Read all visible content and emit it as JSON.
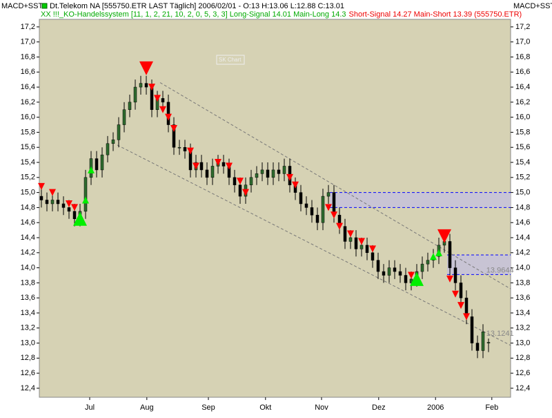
{
  "chart_data": {
    "type": "candlestick",
    "header": {
      "indicator": "MACD+SST",
      "symbol_line": "Dt.Telekom NA [555750.ETR LAST Täglich] 2006/02/01 - O:13 H:13.06 L:12.88 C:13.01",
      "system_line": "XX !!!_KO-Handelssystem [11, 1, 2, 21, 10, 2, 0, 5, 3, 3] Long-Signal 14.01 Main-Long 14.3",
      "short_line": "Short-Signal 14.27 Main-Short 13.39 (555750.ETR)",
      "watermark": "SK Chart"
    },
    "open": [
      14.95,
      14.9,
      14.85,
      14.9,
      14.85,
      14.8,
      14.75,
      14.65,
      14.75,
      15.2,
      15.45,
      15.3,
      15.5,
      15.65,
      15.7,
      15.9,
      16.1,
      16.2,
      16.4,
      16.45,
      16.4,
      16.1,
      16.25,
      16.2,
      15.9,
      15.6,
      15.6,
      15.55,
      15.3,
      15.4,
      15.3,
      15.2,
      15.35,
      15.4,
      15.35,
      15.2,
      15.1,
      14.95,
      15.1,
      15.2,
      15.25,
      15.3,
      15.2,
      15.3,
      15.25,
      15.35,
      15.1,
      15.0,
      14.85,
      14.8,
      14.7,
      14.6,
      14.95,
      15.0,
      14.7,
      14.55,
      14.35,
      14.4,
      14.25,
      14.3,
      14.2,
      14.1,
      13.95,
      13.9,
      14.0,
      13.95,
      13.9,
      13.8,
      13.85,
      13.95,
      14.05,
      14.1,
      14.15,
      14.3,
      14.35,
      14.0,
      13.8,
      13.6,
      13.35,
      13.0,
      12.9,
      13.0
    ],
    "high": [
      15.05,
      15.0,
      15.0,
      15.0,
      14.95,
      14.9,
      14.85,
      14.85,
      15.3,
      15.55,
      15.55,
      15.6,
      15.75,
      15.8,
      16.0,
      16.2,
      16.3,
      16.5,
      16.55,
      16.55,
      16.5,
      16.35,
      16.35,
      16.3,
      16.0,
      15.7,
      15.7,
      15.65,
      15.5,
      15.5,
      15.4,
      15.45,
      15.5,
      15.5,
      15.45,
      15.3,
      15.2,
      15.2,
      15.3,
      15.35,
      15.4,
      15.4,
      15.4,
      15.4,
      15.45,
      15.45,
      15.2,
      15.1,
      14.95,
      14.9,
      14.8,
      15.05,
      15.1,
      15.1,
      14.8,
      14.65,
      14.5,
      14.5,
      14.4,
      14.4,
      14.3,
      14.2,
      14.05,
      14.1,
      14.1,
      14.05,
      14.0,
      13.95,
      14.05,
      14.15,
      14.2,
      14.25,
      14.4,
      14.45,
      14.45,
      14.1,
      13.9,
      13.7,
      13.45,
      13.1,
      13.25,
      13.06
    ],
    "low": [
      14.8,
      14.75,
      14.75,
      14.75,
      14.7,
      14.65,
      14.55,
      14.55,
      14.65,
      15.1,
      15.2,
      15.2,
      15.4,
      15.55,
      15.6,
      15.8,
      16.0,
      16.1,
      16.3,
      16.3,
      16.0,
      16.0,
      16.1,
      15.8,
      15.5,
      15.5,
      15.45,
      15.2,
      15.2,
      15.2,
      15.1,
      15.1,
      15.25,
      15.25,
      15.1,
      15.0,
      14.85,
      14.85,
      15.0,
      15.1,
      15.15,
      15.1,
      15.1,
      15.15,
      15.15,
      15.0,
      14.9,
      14.75,
      14.7,
      14.6,
      14.5,
      14.5,
      14.85,
      14.6,
      14.45,
      14.25,
      14.25,
      14.15,
      14.15,
      14.1,
      14.0,
      13.85,
      13.8,
      13.8,
      13.85,
      13.8,
      13.7,
      13.7,
      13.75,
      13.85,
      13.95,
      14.0,
      14.05,
      14.2,
      13.9,
      13.7,
      13.5,
      13.25,
      12.9,
      12.8,
      12.8,
      12.88
    ],
    "close": [
      14.9,
      14.85,
      14.9,
      14.85,
      14.8,
      14.75,
      14.65,
      14.75,
      15.2,
      15.45,
      15.3,
      15.5,
      15.65,
      15.7,
      15.9,
      16.1,
      16.2,
      16.4,
      16.45,
      16.4,
      16.1,
      16.25,
      16.2,
      15.9,
      15.6,
      15.6,
      15.55,
      15.3,
      15.4,
      15.3,
      15.2,
      15.35,
      15.4,
      15.35,
      15.2,
      15.1,
      14.95,
      15.1,
      15.2,
      15.25,
      15.3,
      15.2,
      15.3,
      15.25,
      15.35,
      15.1,
      15.0,
      14.85,
      14.8,
      14.7,
      14.6,
      14.95,
      15.0,
      14.7,
      14.55,
      14.35,
      14.4,
      14.25,
      14.3,
      14.2,
      14.1,
      13.95,
      13.9,
      14.0,
      13.95,
      13.9,
      13.8,
      13.85,
      13.95,
      14.05,
      14.1,
      14.15,
      14.3,
      14.35,
      14.0,
      13.8,
      13.6,
      13.35,
      13.0,
      12.9,
      13.15,
      13.01
    ],
    "up_color": "#2e6b2e",
    "down_color": "#000000",
    "short_signals": {
      "color": "#ff0000",
      "x": [
        0,
        2,
        5,
        6,
        20,
        21,
        22,
        23,
        24,
        27,
        28,
        32,
        34,
        36,
        37,
        45,
        46,
        52,
        53,
        54,
        56,
        58,
        60,
        67,
        74,
        75,
        76,
        77
      ],
      "y": [
        15.08,
        15.0,
        14.85,
        14.8,
        16.4,
        16.25,
        16.1,
        16.0,
        15.85,
        15.55,
        15.35,
        15.4,
        15.35,
        15.15,
        15.0,
        15.2,
        15.1,
        14.8,
        14.7,
        14.55,
        14.45,
        14.35,
        14.25,
        13.9,
        13.85,
        13.65,
        13.5,
        13.35
      ]
    },
    "long_signals": {
      "color": "#00ee00",
      "x": [
        8,
        9,
        71,
        72
      ],
      "y": [
        14.9,
        15.3,
        14.15,
        14.2
      ]
    },
    "main_short": {
      "color": "#ff0000",
      "x": [
        19,
        73
      ],
      "y": [
        16.65,
        14.42
      ]
    },
    "main_long": {
      "color": "#00ee00",
      "x": [
        7,
        68
      ],
      "y": [
        14.65,
        13.85
      ]
    },
    "zones": [
      {
        "x0": 52.25,
        "y0": 14.8,
        "y1": 15.0
      },
      {
        "x0": 73.5,
        "y0": 13.91,
        "y1": 14.17
      }
    ],
    "zone_color": "#c8c4d4",
    "zone_line_color": "#0000ff",
    "trendlines": [
      {
        "x": [
          21.5,
          85
        ],
        "y": [
          16.46,
          13.72
        ]
      },
      {
        "x": [
          13.75,
          85
        ],
        "y": [
          15.63,
          12.97
        ]
      }
    ],
    "price_labels": [
      {
        "x": 80.6,
        "value": 13.9644,
        "label": "13.9644"
      },
      {
        "x": 80.6,
        "value": 13.1241,
        "label": "13.1241"
      }
    ],
    "xlim": [
      -0.375,
      85
    ],
    "ylim": [
      12.28,
      17.3
    ],
    "xticks": [
      {
        "value": 8.75,
        "label": "Jul"
      },
      {
        "value": 19.1,
        "label": "Aug"
      },
      {
        "value": 30.25,
        "label": "Sep"
      },
      {
        "value": 40.6,
        "label": "Okt"
      },
      {
        "value": 50.75,
        "label": "Nov"
      },
      {
        "value": 61.1,
        "label": "Dez"
      },
      {
        "value": 71.4,
        "label": "2006"
      },
      {
        "value": 81.6,
        "label": "Feb"
      }
    ],
    "yticks": [
      {
        "value": 12.4,
        "label": "12,4"
      },
      {
        "value": 12.6,
        "label": "12,6"
      },
      {
        "value": 12.8,
        "label": "12,8"
      },
      {
        "value": 13,
        "label": "13,0"
      },
      {
        "value": 13.2,
        "label": "13,2"
      },
      {
        "value": 13.4,
        "label": "13,4"
      },
      {
        "value": 13.6,
        "label": "13,6"
      },
      {
        "value": 13.8,
        "label": "13,8"
      },
      {
        "value": 14,
        "label": "14,0"
      },
      {
        "value": 14.2,
        "label": "14,2"
      },
      {
        "value": 14.4,
        "label": "14,4"
      },
      {
        "value": 14.6,
        "label": "14,6"
      },
      {
        "value": 14.8,
        "label": "14,8"
      },
      {
        "value": 15,
        "label": "15,0"
      },
      {
        "value": 15.2,
        "label": "15,2"
      },
      {
        "value": 15.4,
        "label": "15,4"
      },
      {
        "value": 15.6,
        "label": "15,6"
      },
      {
        "value": 15.8,
        "label": "15,8"
      },
      {
        "value": 16,
        "label": "16,0"
      },
      {
        "value": 16.2,
        "label": "16,2"
      },
      {
        "value": 16.4,
        "label": "16,4"
      },
      {
        "value": 16.6,
        "label": "16,6"
      },
      {
        "value": 16.8,
        "label": "16,8"
      },
      {
        "value": 17,
        "label": "17,0"
      },
      {
        "value": 17.2,
        "label": "17,2"
      }
    ],
    "plot_color": "#d6d2b4"
  }
}
